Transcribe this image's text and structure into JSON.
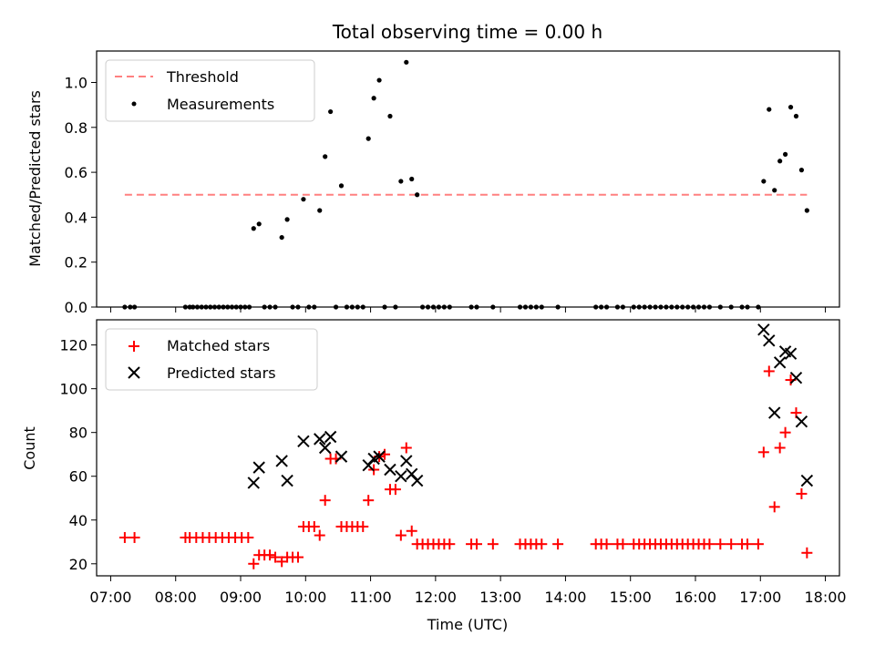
{
  "chart_data": [
    {
      "type": "scatter",
      "title": "Total observing time = 0.00 h",
      "xlabel": "",
      "ylabel": "Matched/Predicted stars",
      "xlim": [
        "06:47",
        "18:13"
      ],
      "ylim": [
        0.0,
        1.14
      ],
      "yticks": [
        "0.0",
        "0.2",
        "0.4",
        "0.6",
        "0.8",
        "1.0"
      ],
      "grid": false,
      "legend": "top-left",
      "threshold": {
        "name": "Threshold",
        "value": 0.5,
        "x_range": [
          "07:13",
          "17:43"
        ],
        "color": "#ff8080"
      },
      "series": [
        {
          "name": "Measurements",
          "color": "#000000",
          "points": [
            [
              "07:13",
              0
            ],
            [
              "07:18",
              0
            ],
            [
              "07:22",
              0
            ],
            [
              "08:09",
              0
            ],
            [
              "08:13",
              0
            ],
            [
              "08:16",
              0
            ],
            [
              "08:20",
              0
            ],
            [
              "08:24",
              0
            ],
            [
              "08:28",
              0
            ],
            [
              "08:32",
              0
            ],
            [
              "08:36",
              0
            ],
            [
              "08:40",
              0
            ],
            [
              "08:44",
              0
            ],
            [
              "08:48",
              0
            ],
            [
              "08:52",
              0
            ],
            [
              "08:56",
              0
            ],
            [
              "09:00",
              0
            ],
            [
              "09:04",
              0
            ],
            [
              "09:08",
              0
            ],
            [
              "09:12",
              0.35
            ],
            [
              "09:17",
              0.37
            ],
            [
              "09:22",
              0
            ],
            [
              "09:27",
              0
            ],
            [
              "09:32",
              0
            ],
            [
              "09:38",
              0.31
            ],
            [
              "09:43",
              0.39
            ],
            [
              "09:48",
              0
            ],
            [
              "09:53",
              0
            ],
            [
              "09:58",
              0.48
            ],
            [
              "10:03",
              0
            ],
            [
              "10:08",
              0
            ],
            [
              "10:13",
              0.43
            ],
            [
              "10:18",
              0.67
            ],
            [
              "10:23",
              0.87
            ],
            [
              "10:28",
              0
            ],
            [
              "10:33",
              0.54
            ],
            [
              "10:38",
              0
            ],
            [
              "10:43",
              0
            ],
            [
              "10:48",
              0
            ],
            [
              "10:53",
              0
            ],
            [
              "10:58",
              0.75
            ],
            [
              "11:03",
              0.93
            ],
            [
              "11:08",
              1.01
            ],
            [
              "11:13",
              0
            ],
            [
              "11:18",
              0.85
            ],
            [
              "11:23",
              0
            ],
            [
              "11:28",
              0.56
            ],
            [
              "11:33",
              1.09
            ],
            [
              "11:38",
              0.57
            ],
            [
              "11:43",
              0.5
            ],
            [
              "11:48",
              0
            ],
            [
              "11:53",
              0
            ],
            [
              "11:58",
              0
            ],
            [
              "12:03",
              0
            ],
            [
              "12:08",
              0
            ],
            [
              "12:13",
              0
            ],
            [
              "12:33",
              0
            ],
            [
              "12:38",
              0
            ],
            [
              "12:53",
              0
            ],
            [
              "13:18",
              0
            ],
            [
              "13:23",
              0
            ],
            [
              "13:28",
              0
            ],
            [
              "13:33",
              0
            ],
            [
              "13:38",
              0
            ],
            [
              "13:53",
              0
            ],
            [
              "14:28",
              0
            ],
            [
              "14:33",
              0
            ],
            [
              "14:38",
              0
            ],
            [
              "14:48",
              0
            ],
            [
              "14:53",
              0
            ],
            [
              "15:03",
              0
            ],
            [
              "15:08",
              0
            ],
            [
              "15:13",
              0
            ],
            [
              "15:18",
              0
            ],
            [
              "15:23",
              0
            ],
            [
              "15:28",
              0
            ],
            [
              "15:33",
              0
            ],
            [
              "15:38",
              0
            ],
            [
              "15:43",
              0
            ],
            [
              "15:48",
              0
            ],
            [
              "15:53",
              0
            ],
            [
              "15:58",
              0
            ],
            [
              "16:03",
              0
            ],
            [
              "16:08",
              0
            ],
            [
              "16:13",
              0
            ],
            [
              "16:23",
              0
            ],
            [
              "16:33",
              0
            ],
            [
              "16:43",
              0
            ],
            [
              "16:48",
              0
            ],
            [
              "16:58",
              0
            ],
            [
              "17:03",
              0.56
            ],
            [
              "17:08",
              0.88
            ],
            [
              "17:13",
              0.52
            ],
            [
              "17:18",
              0.65
            ],
            [
              "17:23",
              0.68
            ],
            [
              "17:28",
              0.89
            ],
            [
              "17:33",
              0.85
            ],
            [
              "17:38",
              0.61
            ],
            [
              "17:43",
              0.43
            ]
          ]
        }
      ]
    },
    {
      "type": "scatter",
      "title": "",
      "xlabel": "Time (UTC)",
      "ylabel": "Count",
      "xlim": [
        "06:47",
        "18:13"
      ],
      "ylim": [
        14.5,
        131.5
      ],
      "xticks": [
        "07:00",
        "08:00",
        "09:00",
        "10:00",
        "11:00",
        "12:00",
        "13:00",
        "14:00",
        "15:00",
        "16:00",
        "17:00",
        "18:00"
      ],
      "yticks": [
        "20",
        "40",
        "60",
        "80",
        "100",
        "120"
      ],
      "grid": false,
      "legend": "top-left",
      "series": [
        {
          "name": "Matched stars",
          "color": "#ff0000",
          "marker": "+",
          "points": [
            [
              "07:13",
              32
            ],
            [
              "07:22",
              32
            ],
            [
              "08:09",
              32
            ],
            [
              "08:13",
              32
            ],
            [
              "08:19",
              32
            ],
            [
              "08:25",
              32
            ],
            [
              "08:31",
              32
            ],
            [
              "08:37",
              32
            ],
            [
              "08:43",
              32
            ],
            [
              "08:49",
              32
            ],
            [
              "08:55",
              32
            ],
            [
              "09:01",
              32
            ],
            [
              "09:07",
              32
            ],
            [
              "09:12",
              20
            ],
            [
              "09:17",
              24
            ],
            [
              "09:22",
              24
            ],
            [
              "09:27",
              24
            ],
            [
              "09:32",
              23
            ],
            [
              "09:38",
              21
            ],
            [
              "09:43",
              23
            ],
            [
              "09:48",
              23
            ],
            [
              "09:53",
              23
            ],
            [
              "09:58",
              37
            ],
            [
              "10:03",
              37
            ],
            [
              "10:08",
              37
            ],
            [
              "10:13",
              33
            ],
            [
              "10:18",
              49
            ],
            [
              "10:23",
              68
            ],
            [
              "10:28",
              68
            ],
            [
              "10:33",
              37
            ],
            [
              "10:38",
              37
            ],
            [
              "10:43",
              37
            ],
            [
              "10:48",
              37
            ],
            [
              "10:53",
              37
            ],
            [
              "10:58",
              49
            ],
            [
              "11:03",
              63
            ],
            [
              "11:08",
              69
            ],
            [
              "11:13",
              70
            ],
            [
              "11:18",
              54
            ],
            [
              "11:23",
              54
            ],
            [
              "11:28",
              33
            ],
            [
              "11:33",
              73
            ],
            [
              "11:38",
              35
            ],
            [
              "11:43",
              29
            ],
            [
              "11:48",
              29
            ],
            [
              "11:53",
              29
            ],
            [
              "11:58",
              29
            ],
            [
              "12:03",
              29
            ],
            [
              "12:08",
              29
            ],
            [
              "12:13",
              29
            ],
            [
              "12:33",
              29
            ],
            [
              "12:38",
              29
            ],
            [
              "12:53",
              29
            ],
            [
              "13:18",
              29
            ],
            [
              "13:23",
              29
            ],
            [
              "13:28",
              29
            ],
            [
              "13:33",
              29
            ],
            [
              "13:38",
              29
            ],
            [
              "13:53",
              29
            ],
            [
              "14:28",
              29
            ],
            [
              "14:33",
              29
            ],
            [
              "14:38",
              29
            ],
            [
              "14:48",
              29
            ],
            [
              "14:53",
              29
            ],
            [
              "15:03",
              29
            ],
            [
              "15:08",
              29
            ],
            [
              "15:13",
              29
            ],
            [
              "15:18",
              29
            ],
            [
              "15:23",
              29
            ],
            [
              "15:28",
              29
            ],
            [
              "15:33",
              29
            ],
            [
              "15:38",
              29
            ],
            [
              "15:43",
              29
            ],
            [
              "15:48",
              29
            ],
            [
              "15:53",
              29
            ],
            [
              "15:58",
              29
            ],
            [
              "16:03",
              29
            ],
            [
              "16:08",
              29
            ],
            [
              "16:13",
              29
            ],
            [
              "16:23",
              29
            ],
            [
              "16:33",
              29
            ],
            [
              "16:43",
              29
            ],
            [
              "16:48",
              29
            ],
            [
              "16:58",
              29
            ],
            [
              "17:03",
              71
            ],
            [
              "17:08",
              108
            ],
            [
              "17:13",
              46
            ],
            [
              "17:18",
              73
            ],
            [
              "17:23",
              80
            ],
            [
              "17:28",
              104
            ],
            [
              "17:33",
              89
            ],
            [
              "17:38",
              52
            ],
            [
              "17:43",
              25
            ]
          ]
        },
        {
          "name": "Predicted stars",
          "color": "#000000",
          "marker": "x",
          "points": [
            [
              "09:12",
              57
            ],
            [
              "09:17",
              64
            ],
            [
              "09:38",
              67
            ],
            [
              "09:43",
              58
            ],
            [
              "09:58",
              76
            ],
            [
              "10:13",
              77
            ],
            [
              "10:18",
              73
            ],
            [
              "10:23",
              78
            ],
            [
              "10:33",
              69
            ],
            [
              "10:58",
              65
            ],
            [
              "11:03",
              68
            ],
            [
              "11:08",
              69
            ],
            [
              "11:18",
              63
            ],
            [
              "11:28",
              60
            ],
            [
              "11:33",
              67
            ],
            [
              "11:38",
              61
            ],
            [
              "11:43",
              58
            ],
            [
              "17:03",
              127
            ],
            [
              "17:08",
              122
            ],
            [
              "17:13",
              89
            ],
            [
              "17:18",
              112
            ],
            [
              "17:23",
              117
            ],
            [
              "17:28",
              116
            ],
            [
              "17:33",
              105
            ],
            [
              "17:38",
              85
            ],
            [
              "17:43",
              58
            ]
          ]
        }
      ]
    }
  ]
}
